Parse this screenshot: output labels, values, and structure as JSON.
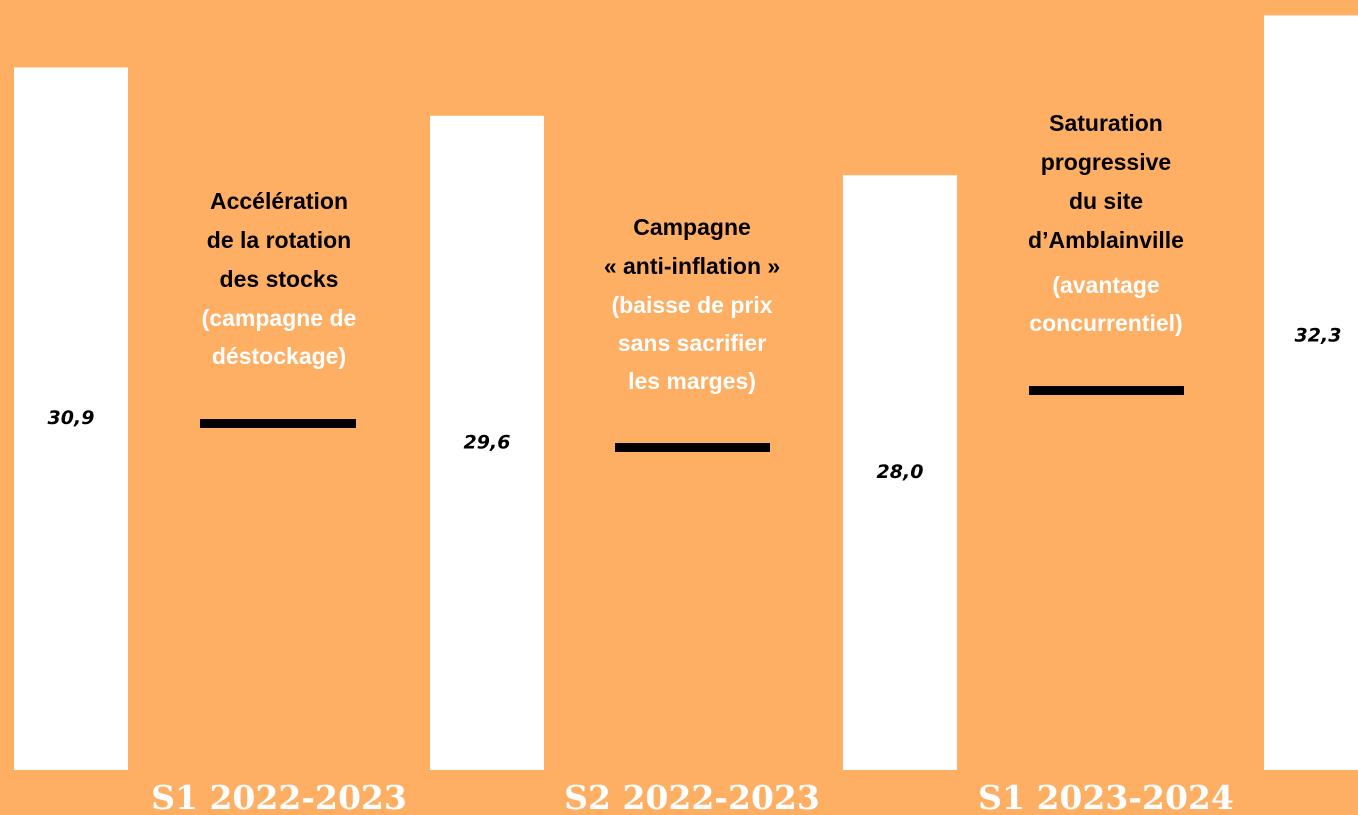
{
  "chart_data": {
    "type": "bar",
    "categories": [
      "S1 2022-2023",
      "S2 2022-2023",
      "S1 2023-2024",
      null
    ],
    "values": [
      30.9,
      29.6,
      28.0,
      32.3
    ],
    "value_labels": [
      "30,9",
      "29,6",
      "28,0",
      "32,3"
    ],
    "color": "#ffffff",
    "ylim": [
      12,
      32.5
    ],
    "annotations": [
      {
        "lines": [
          "Accélération",
          "de la rotation",
          "des stocks"
        ],
        "notes": [
          "(campagne de",
          "déstockage)"
        ]
      },
      {
        "lines": [
          "Campagne",
          "« anti-inflation »"
        ],
        "notes": [
          "(baisse de prix",
          "sans sacrifier",
          "les marges)"
        ]
      },
      {
        "lines": [
          "Saturation",
          "progressive",
          "du site",
          "d’Amblainville"
        ],
        "notes": [
          "(avantage",
          "concurrentiel)"
        ]
      }
    ]
  }
}
